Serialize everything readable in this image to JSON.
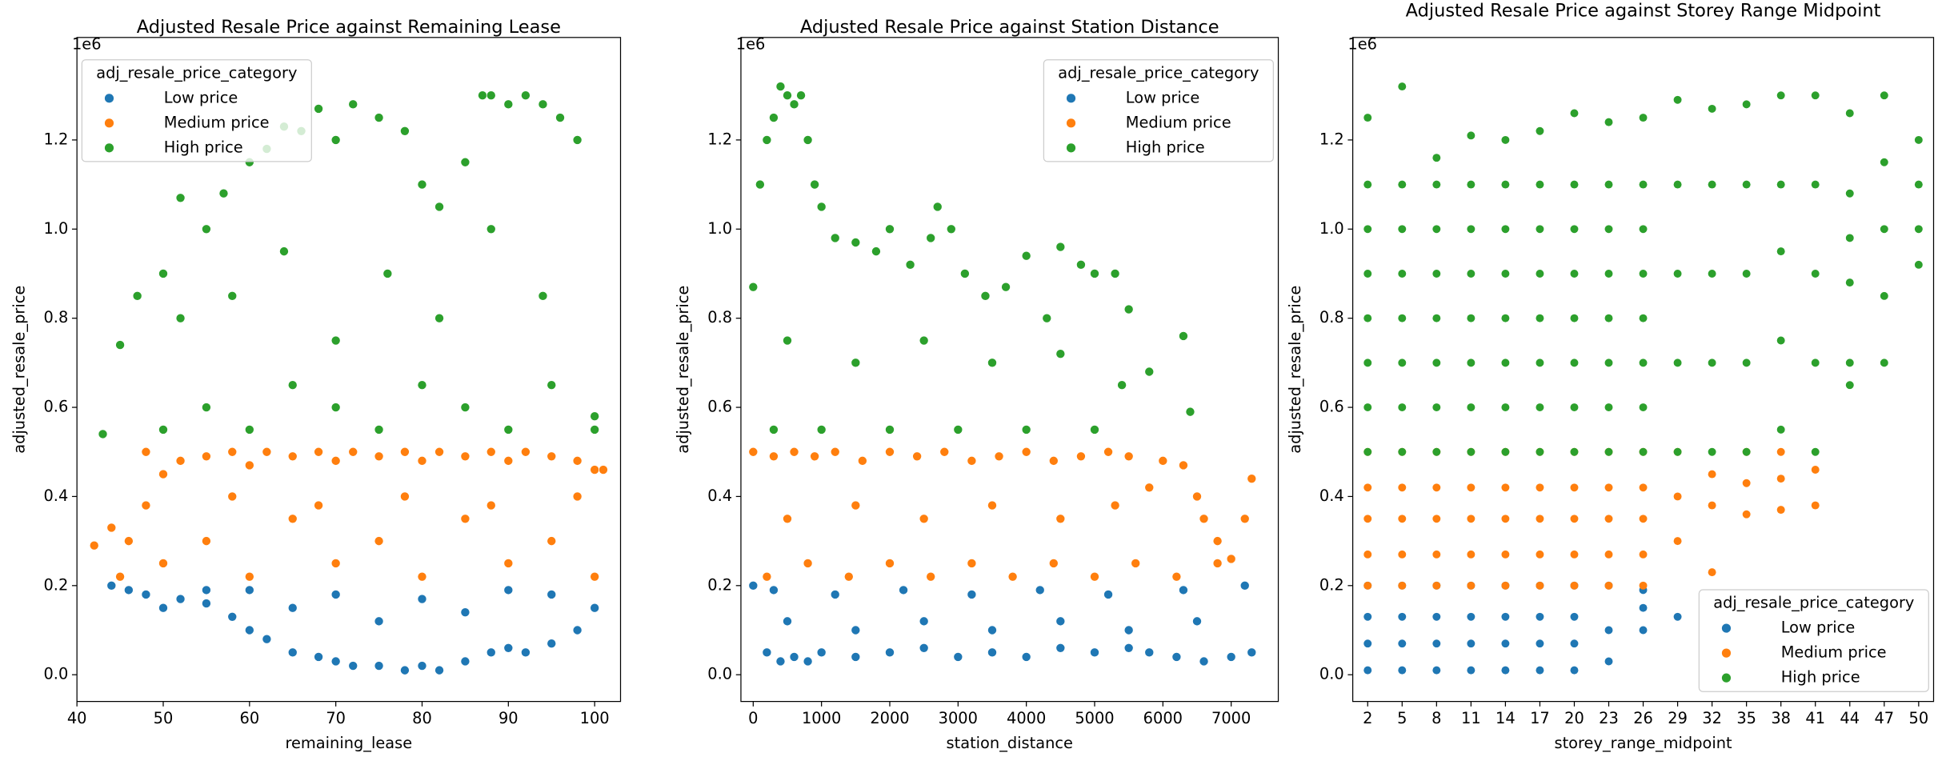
{
  "chart_data": [
    {
      "type": "scatter",
      "title": "Adjusted Resale Price against Remaining Lease",
      "x_label": "remaining_lease",
      "y_label": "adjusted_resale_price",
      "y_offset_label": "1e6",
      "legend_title": "adj_resale_price_category",
      "legend_loc": "upper left",
      "xlim": [
        40,
        103
      ],
      "xticks": [
        40,
        50,
        60,
        70,
        80,
        90,
        100
      ],
      "ylim": [
        -0.06,
        1.43
      ],
      "yticks": [
        {
          "value": 0,
          "label": "0.0"
        },
        {
          "value": 0.2,
          "label": "0.2"
        },
        {
          "value": 0.4,
          "label": "0.4"
        },
        {
          "value": 0.6,
          "label": "0.6"
        },
        {
          "value": 0.8,
          "label": "0.8"
        },
        {
          "value": 1.0,
          "label": "1.0"
        },
        {
          "value": 1.2,
          "label": "1.2"
        }
      ],
      "series": [
        {
          "name": "Low price",
          "color": "#1f77b4",
          "x": [
            44,
            46,
            48,
            50,
            52,
            55,
            58,
            60,
            62,
            65,
            68,
            70,
            72,
            75,
            78,
            80,
            82,
            85,
            88,
            90,
            92,
            95,
            98,
            100,
            55,
            65,
            75,
            85,
            95,
            60,
            70,
            80,
            90
          ],
          "values": [
            0.2,
            0.19,
            0.18,
            0.15,
            0.17,
            0.16,
            0.13,
            0.1,
            0.08,
            0.05,
            0.04,
            0.03,
            0.02,
            0.02,
            0.01,
            0.02,
            0.01,
            0.03,
            0.05,
            0.06,
            0.05,
            0.07,
            0.1,
            0.15,
            0.19,
            0.15,
            0.12,
            0.14,
            0.18,
            0.19,
            0.18,
            0.17,
            0.19
          ]
        },
        {
          "name": "Medium price",
          "color": "#ff7f0e",
          "x": [
            42,
            44,
            46,
            48,
            50,
            52,
            55,
            58,
            60,
            62,
            65,
            68,
            70,
            72,
            75,
            78,
            80,
            82,
            85,
            88,
            90,
            92,
            95,
            98,
            100,
            101,
            45,
            50,
            55,
            60,
            65,
            70,
            75,
            80,
            85,
            90,
            95,
            100,
            48,
            58,
            68,
            78,
            88,
            98
          ],
          "values": [
            0.29,
            0.33,
            0.3,
            0.5,
            0.45,
            0.48,
            0.49,
            0.5,
            0.47,
            0.5,
            0.49,
            0.5,
            0.48,
            0.5,
            0.49,
            0.5,
            0.48,
            0.5,
            0.49,
            0.5,
            0.48,
            0.5,
            0.49,
            0.48,
            0.46,
            0.46,
            0.22,
            0.25,
            0.3,
            0.22,
            0.35,
            0.25,
            0.3,
            0.22,
            0.35,
            0.25,
            0.3,
            0.22,
            0.38,
            0.4,
            0.38,
            0.4,
            0.38,
            0.4
          ]
        },
        {
          "name": "High price",
          "color": "#2ca02c",
          "x": [
            43,
            45,
            47,
            50,
            52,
            55,
            57,
            60,
            62,
            64,
            66,
            68,
            70,
            72,
            75,
            78,
            80,
            82,
            85,
            87,
            88,
            90,
            92,
            94,
            96,
            98,
            100,
            50,
            55,
            60,
            65,
            70,
            75,
            80,
            85,
            90,
            95,
            100,
            52,
            58,
            64,
            70,
            76,
            82,
            88,
            94
          ],
          "values": [
            0.54,
            0.74,
            0.85,
            0.9,
            1.07,
            1.0,
            1.08,
            1.15,
            1.18,
            1.23,
            1.22,
            1.27,
            1.2,
            1.28,
            1.25,
            1.22,
            1.1,
            1.05,
            1.15,
            1.3,
            1.3,
            1.28,
            1.3,
            1.28,
            1.25,
            1.2,
            0.58,
            0.55,
            0.6,
            0.55,
            0.65,
            0.6,
            0.55,
            0.65,
            0.6,
            0.55,
            0.65,
            0.55,
            0.8,
            0.85,
            0.95,
            0.75,
            0.9,
            0.8,
            1.0,
            0.85
          ]
        }
      ]
    },
    {
      "type": "scatter",
      "title": "Adjusted Resale Price against Station Distance",
      "x_label": "station_distance",
      "y_label": "adjusted_resale_price",
      "y_offset_label": "1e6",
      "legend_title": "adj_resale_price_category",
      "legend_loc": "upper right",
      "xlim": [
        -180,
        7690
      ],
      "xticks": [
        0,
        1000,
        2000,
        3000,
        4000,
        5000,
        6000,
        7000
      ],
      "ylim": [
        -0.06,
        1.43
      ],
      "yticks": [
        {
          "value": 0,
          "label": "0.0"
        },
        {
          "value": 0.2,
          "label": "0.2"
        },
        {
          "value": 0.4,
          "label": "0.4"
        },
        {
          "value": 0.6,
          "label": "0.6"
        },
        {
          "value": 0.8,
          "label": "0.8"
        },
        {
          "value": 1.0,
          "label": "1.0"
        },
        {
          "value": 1.2,
          "label": "1.2"
        }
      ],
      "series": [
        {
          "name": "Low price",
          "color": "#1f77b4",
          "x": [
            0,
            200,
            400,
            600,
            800,
            1000,
            1500,
            2000,
            2500,
            3000,
            3500,
            4000,
            4500,
            5000,
            5500,
            5800,
            6200,
            6600,
            7000,
            7300,
            500,
            1500,
            2500,
            3500,
            4500,
            5500,
            6500,
            300,
            1200,
            2200,
            3200,
            4200,
            5200,
            6300,
            7200
          ],
          "values": [
            0.2,
            0.05,
            0.03,
            0.04,
            0.03,
            0.05,
            0.04,
            0.05,
            0.06,
            0.04,
            0.05,
            0.04,
            0.06,
            0.05,
            0.06,
            0.05,
            0.04,
            0.03,
            0.04,
            0.05,
            0.12,
            0.1,
            0.12,
            0.1,
            0.12,
            0.1,
            0.12,
            0.19,
            0.18,
            0.19,
            0.18,
            0.19,
            0.18,
            0.19,
            0.2
          ]
        },
        {
          "name": "Medium price",
          "color": "#ff7f0e",
          "x": [
            0,
            300,
            600,
            900,
            1200,
            1600,
            2000,
            2400,
            2800,
            3200,
            3600,
            4000,
            4400,
            4800,
            5200,
            5500,
            5800,
            6000,
            6300,
            6500,
            6800,
            7000,
            7300,
            200,
            800,
            1400,
            2000,
            2600,
            3200,
            3800,
            4400,
            5000,
            5600,
            6200,
            6800,
            500,
            1500,
            2500,
            3500,
            4500,
            5300,
            6600,
            7200
          ],
          "values": [
            0.5,
            0.49,
            0.5,
            0.49,
            0.5,
            0.48,
            0.5,
            0.49,
            0.5,
            0.48,
            0.49,
            0.5,
            0.48,
            0.49,
            0.5,
            0.49,
            0.42,
            0.48,
            0.47,
            0.4,
            0.3,
            0.26,
            0.44,
            0.22,
            0.25,
            0.22,
            0.25,
            0.22,
            0.25,
            0.22,
            0.25,
            0.22,
            0.25,
            0.22,
            0.25,
            0.35,
            0.38,
            0.35,
            0.38,
            0.35,
            0.38,
            0.35,
            0.35
          ]
        },
        {
          "name": "High price",
          "color": "#2ca02c",
          "x": [
            0,
            100,
            200,
            300,
            400,
            500,
            600,
            700,
            800,
            900,
            1000,
            1200,
            1500,
            1800,
            2000,
            2300,
            2600,
            2700,
            2900,
            3100,
            3400,
            3700,
            4000,
            4300,
            4500,
            4800,
            5000,
            5300,
            5500,
            5800,
            6300,
            6400,
            300,
            1000,
            2000,
            3000,
            4000,
            5000,
            500,
            1500,
            2500,
            3500,
            4500,
            5400
          ],
          "values": [
            0.87,
            1.1,
            1.2,
            1.25,
            1.32,
            1.3,
            1.28,
            1.3,
            1.2,
            1.1,
            1.05,
            0.98,
            0.97,
            0.95,
            1.0,
            0.92,
            0.98,
            1.05,
            1.0,
            0.9,
            0.85,
            0.87,
            0.94,
            0.8,
            0.96,
            0.92,
            0.9,
            0.9,
            0.82,
            0.68,
            0.76,
            0.59,
            0.55,
            0.55,
            0.55,
            0.55,
            0.55,
            0.55,
            0.75,
            0.7,
            0.75,
            0.7,
            0.72,
            0.65
          ]
        }
      ]
    },
    {
      "type": "strip",
      "title": "Adjusted Resale Price against Storey Range Midpoint",
      "x_label": "storey_range_midpoint",
      "y_label": "adjusted_resale_price",
      "y_offset_label": "1e6",
      "legend_title": "adj_resale_price_category",
      "legend_loc": "lower right",
      "xlim": [
        0.7,
        51.3
      ],
      "xticks": [
        2,
        5,
        8,
        11,
        14,
        17,
        20,
        23,
        26,
        29,
        32,
        35,
        38,
        41,
        44,
        47,
        50
      ],
      "ylim": [
        -0.06,
        1.43
      ],
      "yticks": [
        {
          "value": 0,
          "label": "0.0"
        },
        {
          "value": 0.2,
          "label": "0.2"
        },
        {
          "value": 0.4,
          "label": "0.4"
        },
        {
          "value": 0.6,
          "label": "0.6"
        },
        {
          "value": 0.8,
          "label": "0.8"
        },
        {
          "value": 1.0,
          "label": "1.0"
        },
        {
          "value": 1.2,
          "label": "1.2"
        }
      ],
      "series": [
        {
          "name": "Low price",
          "color": "#1f77b4",
          "x": [
            2,
            2,
            2,
            2,
            5,
            5,
            5,
            5,
            8,
            8,
            8,
            8,
            11,
            11,
            11,
            11,
            14,
            14,
            14,
            14,
            17,
            17,
            17,
            17,
            20,
            20,
            20,
            20,
            23,
            23,
            23,
            26,
            26,
            26,
            29
          ],
          "values": [
            0.01,
            0.07,
            0.13,
            0.2,
            0.01,
            0.07,
            0.13,
            0.2,
            0.01,
            0.07,
            0.13,
            0.2,
            0.01,
            0.07,
            0.13,
            0.2,
            0.01,
            0.07,
            0.13,
            0.2,
            0.01,
            0.07,
            0.13,
            0.2,
            0.01,
            0.07,
            0.13,
            0.2,
            0.03,
            0.1,
            0.2,
            0.1,
            0.15,
            0.19,
            0.13
          ]
        },
        {
          "name": "Medium price",
          "color": "#ff7f0e",
          "x": [
            2,
            2,
            2,
            2,
            2,
            5,
            5,
            5,
            5,
            5,
            8,
            8,
            8,
            8,
            8,
            11,
            11,
            11,
            11,
            11,
            14,
            14,
            14,
            14,
            14,
            17,
            17,
            17,
            17,
            17,
            20,
            20,
            20,
            20,
            20,
            23,
            23,
            23,
            23,
            23,
            26,
            26,
            26,
            26,
            26,
            29,
            29,
            29,
            32,
            32,
            32,
            35,
            35,
            35,
            38,
            38,
            38,
            41,
            41
          ],
          "values": [
            0.2,
            0.27,
            0.35,
            0.42,
            0.5,
            0.2,
            0.27,
            0.35,
            0.42,
            0.5,
            0.2,
            0.27,
            0.35,
            0.42,
            0.5,
            0.2,
            0.27,
            0.35,
            0.42,
            0.5,
            0.2,
            0.27,
            0.35,
            0.42,
            0.5,
            0.2,
            0.27,
            0.35,
            0.42,
            0.5,
            0.2,
            0.27,
            0.35,
            0.42,
            0.5,
            0.2,
            0.27,
            0.35,
            0.42,
            0.5,
            0.2,
            0.27,
            0.35,
            0.42,
            0.5,
            0.3,
            0.4,
            0.5,
            0.23,
            0.38,
            0.45,
            0.36,
            0.43,
            0.5,
            0.37,
            0.44,
            0.5,
            0.38,
            0.46
          ]
        },
        {
          "name": "High price",
          "color": "#2ca02c",
          "x": [
            2,
            2,
            2,
            2,
            2,
            2,
            2,
            2,
            5,
            5,
            5,
            5,
            5,
            5,
            5,
            5,
            8,
            8,
            8,
            8,
            8,
            8,
            8,
            8,
            11,
            11,
            11,
            11,
            11,
            11,
            11,
            11,
            14,
            14,
            14,
            14,
            14,
            14,
            14,
            14,
            17,
            17,
            17,
            17,
            17,
            17,
            17,
            17,
            20,
            20,
            20,
            20,
            20,
            20,
            20,
            20,
            23,
            23,
            23,
            23,
            23,
            23,
            23,
            23,
            26,
            26,
            26,
            26,
            26,
            26,
            26,
            26,
            29,
            29,
            29,
            29,
            29,
            32,
            32,
            32,
            32,
            32,
            35,
            35,
            35,
            35,
            35,
            38,
            38,
            38,
            38,
            38,
            41,
            41,
            41,
            41,
            41,
            44,
            44,
            44,
            44,
            44,
            44,
            47,
            47,
            47,
            47,
            47,
            50,
            50,
            50,
            50
          ],
          "values": [
            0.5,
            0.6,
            0.7,
            0.8,
            0.9,
            1.0,
            1.1,
            1.25,
            0.5,
            0.6,
            0.7,
            0.8,
            0.9,
            1.0,
            1.1,
            1.32,
            0.5,
            0.6,
            0.7,
            0.8,
            0.9,
            1.0,
            1.1,
            1.16,
            0.5,
            0.6,
            0.7,
            0.8,
            0.9,
            1.0,
            1.1,
            1.21,
            0.5,
            0.6,
            0.7,
            0.8,
            0.9,
            1.0,
            1.1,
            1.2,
            0.5,
            0.6,
            0.7,
            0.8,
            0.9,
            1.0,
            1.1,
            1.22,
            0.5,
            0.6,
            0.7,
            0.8,
            0.9,
            1.0,
            1.1,
            1.26,
            0.5,
            0.6,
            0.7,
            0.8,
            0.9,
            1.0,
            1.1,
            1.24,
            0.5,
            0.6,
            0.7,
            0.8,
            0.9,
            1.0,
            1.1,
            1.25,
            0.5,
            0.7,
            0.9,
            1.1,
            1.29,
            0.5,
            0.7,
            0.9,
            1.1,
            1.27,
            0.5,
            0.7,
            0.9,
            1.1,
            1.28,
            0.55,
            0.75,
            0.95,
            1.1,
            1.3,
            0.5,
            0.7,
            0.9,
            1.1,
            1.3,
            0.65,
            0.7,
            0.88,
            0.98,
            1.08,
            1.26,
            0.7,
            0.85,
            1.0,
            1.15,
            1.3,
            0.92,
            1.0,
            1.1,
            1.2
          ]
        }
      ]
    }
  ]
}
